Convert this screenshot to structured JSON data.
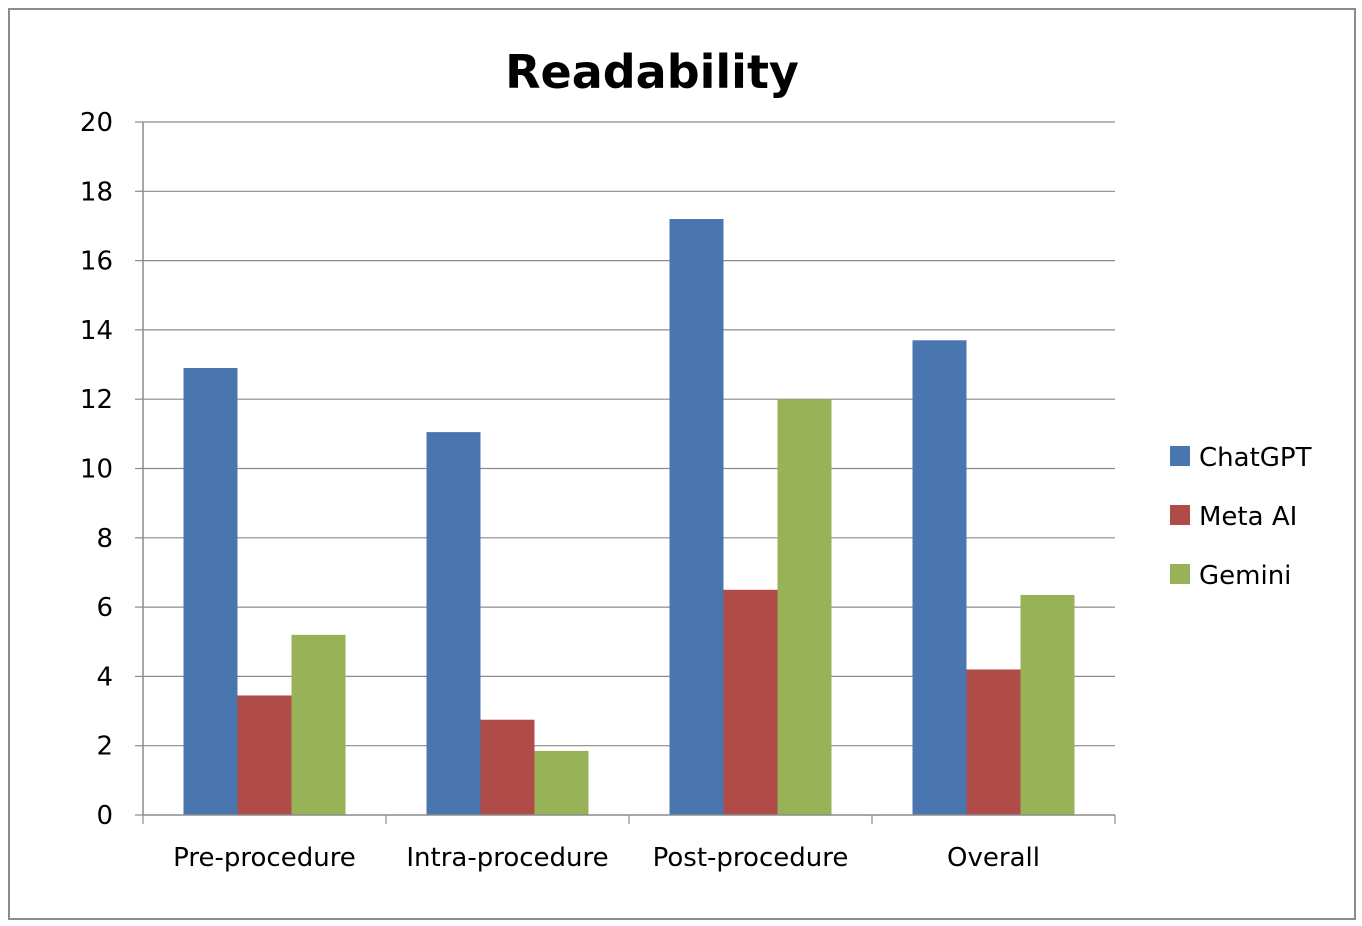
{
  "chart_data": {
    "type": "bar",
    "title": "Readability",
    "xlabel": "",
    "ylabel": "",
    "ylim": [
      0,
      20
    ],
    "yticks": [
      0,
      2,
      4,
      6,
      8,
      10,
      12,
      14,
      16,
      18,
      20
    ],
    "grid": true,
    "legend_position": "right",
    "categories": [
      "Pre-procedure",
      "Intra-procedure",
      "Post-procedure",
      "Overall"
    ],
    "series": [
      {
        "name": "ChatGPT",
        "color": "#4a76af",
        "values": [
          12.9,
          11.05,
          17.2,
          13.7
        ]
      },
      {
        "name": "Meta AI",
        "color": "#b04c47",
        "values": [
          3.45,
          2.75,
          6.5,
          4.2
        ]
      },
      {
        "name": "Gemini",
        "color": "#97b257",
        "values": [
          5.2,
          1.85,
          12.0,
          6.35
        ]
      }
    ]
  }
}
